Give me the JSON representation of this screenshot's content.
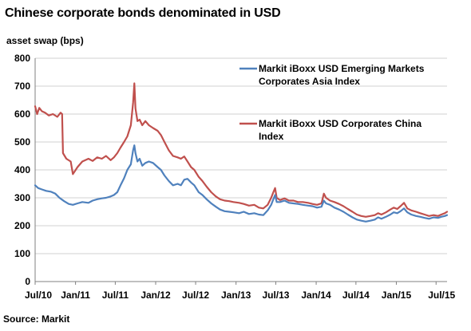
{
  "chart_data": {
    "type": "line",
    "title": "Chinese corporate bonds denominated in USD",
    "ylabel": "asset swap (bps)",
    "source": "Source: Markit",
    "ylim": [
      0,
      800
    ],
    "yticks": [
      0,
      100,
      200,
      300,
      400,
      500,
      600,
      700,
      800
    ],
    "xlim": [
      "2010-07-01",
      "2015-08-20"
    ],
    "xticks": [
      {
        "date": "2010-07-01",
        "label": "Jul/10"
      },
      {
        "date": "2011-01-01",
        "label": "Jan/11"
      },
      {
        "date": "2011-07-01",
        "label": "Jul/11"
      },
      {
        "date": "2012-01-01",
        "label": "Jan/12"
      },
      {
        "date": "2012-07-01",
        "label": "Jul/12"
      },
      {
        "date": "2013-01-01",
        "label": "Jan/13"
      },
      {
        "date": "2013-07-01",
        "label": "Jul/13"
      },
      {
        "date": "2014-01-01",
        "label": "Jan/14"
      },
      {
        "date": "2014-07-01",
        "label": "Jul/14"
      },
      {
        "date": "2015-01-01",
        "label": "Jan/15"
      },
      {
        "date": "2015-07-01",
        "label": "Jul/15"
      }
    ],
    "grid": "horizontal",
    "legend_placement": "top-right",
    "series": [
      {
        "name": "Markit iBoxx USD Emerging Markets Corporates Asia Index",
        "color": "#4f81bd",
        "points": [
          [
            "2010-07-01",
            345
          ],
          [
            "2010-07-15",
            335
          ],
          [
            "2010-08-01",
            330
          ],
          [
            "2010-08-20",
            325
          ],
          [
            "2010-09-10",
            322
          ],
          [
            "2010-10-01",
            315
          ],
          [
            "2010-10-20",
            300
          ],
          [
            "2010-11-10",
            288
          ],
          [
            "2010-12-01",
            278
          ],
          [
            "2010-12-20",
            275
          ],
          [
            "2011-01-10",
            280
          ],
          [
            "2011-02-01",
            285
          ],
          [
            "2011-03-01",
            282
          ],
          [
            "2011-03-20",
            290
          ],
          [
            "2011-04-10",
            295
          ],
          [
            "2011-05-01",
            298
          ],
          [
            "2011-05-20",
            300
          ],
          [
            "2011-06-10",
            305
          ],
          [
            "2011-06-25",
            310
          ],
          [
            "2011-07-10",
            320
          ],
          [
            "2011-07-25",
            345
          ],
          [
            "2011-08-10",
            370
          ],
          [
            "2011-08-25",
            400
          ],
          [
            "2011-09-10",
            420
          ],
          [
            "2011-09-20",
            470
          ],
          [
            "2011-09-26",
            488
          ],
          [
            "2011-10-01",
            460
          ],
          [
            "2011-10-10",
            430
          ],
          [
            "2011-10-20",
            440
          ],
          [
            "2011-11-01",
            415
          ],
          [
            "2011-11-15",
            425
          ],
          [
            "2011-12-01",
            430
          ],
          [
            "2011-12-20",
            425
          ],
          [
            "2012-01-10",
            410
          ],
          [
            "2012-01-25",
            400
          ],
          [
            "2012-02-10",
            380
          ],
          [
            "2012-03-01",
            360
          ],
          [
            "2012-03-20",
            345
          ],
          [
            "2012-04-10",
            350
          ],
          [
            "2012-04-25",
            345
          ],
          [
            "2012-05-10",
            365
          ],
          [
            "2012-05-25",
            368
          ],
          [
            "2012-06-10",
            355
          ],
          [
            "2012-06-25",
            345
          ],
          [
            "2012-07-15",
            320
          ],
          [
            "2012-08-01",
            310
          ],
          [
            "2012-08-20",
            295
          ],
          [
            "2012-09-10",
            280
          ],
          [
            "2012-10-01",
            268
          ],
          [
            "2012-10-20",
            258
          ],
          [
            "2012-11-10",
            252
          ],
          [
            "2012-12-01",
            250
          ],
          [
            "2012-12-20",
            248
          ],
          [
            "2013-01-15",
            245
          ],
          [
            "2013-02-05",
            250
          ],
          [
            "2013-03-01",
            242
          ],
          [
            "2013-03-25",
            245
          ],
          [
            "2013-04-15",
            240
          ],
          [
            "2013-05-05",
            238
          ],
          [
            "2013-05-25",
            255
          ],
          [
            "2013-06-10",
            275
          ],
          [
            "2013-06-20",
            295
          ],
          [
            "2013-06-28",
            310
          ],
          [
            "2013-07-05",
            285
          ],
          [
            "2013-07-20",
            285
          ],
          [
            "2013-08-10",
            290
          ],
          [
            "2013-08-30",
            282
          ],
          [
            "2013-09-20",
            280
          ],
          [
            "2013-10-10",
            278
          ],
          [
            "2013-11-01",
            275
          ],
          [
            "2013-11-25",
            272
          ],
          [
            "2013-12-15",
            270
          ],
          [
            "2014-01-05",
            265
          ],
          [
            "2014-01-25",
            268
          ],
          [
            "2014-02-05",
            290
          ],
          [
            "2014-02-15",
            280
          ],
          [
            "2014-03-05",
            275
          ],
          [
            "2014-03-25",
            265
          ],
          [
            "2014-04-15",
            258
          ],
          [
            "2014-05-05",
            250
          ],
          [
            "2014-05-25",
            240
          ],
          [
            "2014-06-15",
            230
          ],
          [
            "2014-07-05",
            222
          ],
          [
            "2014-07-25",
            218
          ],
          [
            "2014-08-15",
            215
          ],
          [
            "2014-09-05",
            218
          ],
          [
            "2014-09-25",
            222
          ],
          [
            "2014-10-10",
            230
          ],
          [
            "2014-10-25",
            225
          ],
          [
            "2014-11-15",
            232
          ],
          [
            "2014-12-05",
            240
          ],
          [
            "2014-12-20",
            248
          ],
          [
            "2015-01-05",
            245
          ],
          [
            "2015-01-20",
            252
          ],
          [
            "2015-02-05",
            262
          ],
          [
            "2015-02-20",
            248
          ],
          [
            "2015-03-10",
            240
          ],
          [
            "2015-04-01",
            235
          ],
          [
            "2015-04-20",
            232
          ],
          [
            "2015-05-10",
            228
          ],
          [
            "2015-05-30",
            225
          ],
          [
            "2015-06-20",
            230
          ],
          [
            "2015-07-10",
            228
          ],
          [
            "2015-07-25",
            232
          ],
          [
            "2015-08-10",
            235
          ],
          [
            "2015-08-20",
            238
          ]
        ]
      },
      {
        "name": "Markit iBoxx USD Corporates China Index",
        "color": "#c0504d",
        "points": [
          [
            "2010-07-01",
            628
          ],
          [
            "2010-07-10",
            600
          ],
          [
            "2010-07-20",
            622
          ],
          [
            "2010-08-01",
            610
          ],
          [
            "2010-08-15",
            605
          ],
          [
            "2010-09-01",
            595
          ],
          [
            "2010-09-20",
            600
          ],
          [
            "2010-10-10",
            590
          ],
          [
            "2010-10-25",
            605
          ],
          [
            "2010-11-01",
            600
          ],
          [
            "2010-11-05",
            460
          ],
          [
            "2010-11-20",
            440
          ],
          [
            "2010-12-10",
            430
          ],
          [
            "2010-12-20",
            385
          ],
          [
            "2011-01-10",
            410
          ],
          [
            "2011-02-01",
            430
          ],
          [
            "2011-03-01",
            440
          ],
          [
            "2011-03-20",
            432
          ],
          [
            "2011-04-10",
            445
          ],
          [
            "2011-05-01",
            440
          ],
          [
            "2011-05-20",
            450
          ],
          [
            "2011-06-10",
            435
          ],
          [
            "2011-06-25",
            445
          ],
          [
            "2011-07-10",
            460
          ],
          [
            "2011-07-25",
            480
          ],
          [
            "2011-08-10",
            500
          ],
          [
            "2011-08-25",
            520
          ],
          [
            "2011-09-10",
            560
          ],
          [
            "2011-09-20",
            640
          ],
          [
            "2011-09-26",
            710
          ],
          [
            "2011-10-01",
            620
          ],
          [
            "2011-10-10",
            575
          ],
          [
            "2011-10-20",
            580
          ],
          [
            "2011-11-01",
            560
          ],
          [
            "2011-11-15",
            575
          ],
          [
            "2011-12-01",
            560
          ],
          [
            "2011-12-20",
            550
          ],
          [
            "2012-01-10",
            540
          ],
          [
            "2012-01-25",
            525
          ],
          [
            "2012-02-10",
            500
          ],
          [
            "2012-03-01",
            470
          ],
          [
            "2012-03-20",
            450
          ],
          [
            "2012-04-10",
            445
          ],
          [
            "2012-04-25",
            440
          ],
          [
            "2012-05-10",
            448
          ],
          [
            "2012-05-25",
            430
          ],
          [
            "2012-06-10",
            410
          ],
          [
            "2012-06-25",
            400
          ],
          [
            "2012-07-15",
            375
          ],
          [
            "2012-08-01",
            360
          ],
          [
            "2012-08-20",
            340
          ],
          [
            "2012-09-10",
            320
          ],
          [
            "2012-10-01",
            305
          ],
          [
            "2012-10-20",
            295
          ],
          [
            "2012-11-10",
            290
          ],
          [
            "2012-12-01",
            288
          ],
          [
            "2012-12-20",
            285
          ],
          [
            "2013-01-15",
            282
          ],
          [
            "2013-02-05",
            278
          ],
          [
            "2013-03-01",
            272
          ],
          [
            "2013-03-25",
            275
          ],
          [
            "2013-04-15",
            265
          ],
          [
            "2013-05-05",
            262
          ],
          [
            "2013-05-25",
            275
          ],
          [
            "2013-06-10",
            300
          ],
          [
            "2013-06-20",
            320
          ],
          [
            "2013-06-28",
            335
          ],
          [
            "2013-07-05",
            300
          ],
          [
            "2013-07-20",
            292
          ],
          [
            "2013-08-10",
            298
          ],
          [
            "2013-08-30",
            290
          ],
          [
            "2013-09-20",
            290
          ],
          [
            "2013-10-10",
            285
          ],
          [
            "2013-11-01",
            285
          ],
          [
            "2013-11-25",
            282
          ],
          [
            "2013-12-15",
            278
          ],
          [
            "2014-01-05",
            275
          ],
          [
            "2014-01-25",
            280
          ],
          [
            "2014-02-05",
            315
          ],
          [
            "2014-02-15",
            300
          ],
          [
            "2014-03-05",
            290
          ],
          [
            "2014-03-25",
            285
          ],
          [
            "2014-04-15",
            278
          ],
          [
            "2014-05-05",
            270
          ],
          [
            "2014-05-25",
            260
          ],
          [
            "2014-06-15",
            250
          ],
          [
            "2014-07-05",
            240
          ],
          [
            "2014-07-25",
            235
          ],
          [
            "2014-08-15",
            232
          ],
          [
            "2014-09-05",
            235
          ],
          [
            "2014-09-25",
            238
          ],
          [
            "2014-10-10",
            245
          ],
          [
            "2014-10-25",
            240
          ],
          [
            "2014-11-15",
            248
          ],
          [
            "2014-12-05",
            258
          ],
          [
            "2014-12-20",
            265
          ],
          [
            "2015-01-05",
            260
          ],
          [
            "2015-01-20",
            270
          ],
          [
            "2015-02-05",
            282
          ],
          [
            "2015-02-20",
            262
          ],
          [
            "2015-03-10",
            255
          ],
          [
            "2015-04-01",
            250
          ],
          [
            "2015-04-20",
            245
          ],
          [
            "2015-05-10",
            240
          ],
          [
            "2015-05-30",
            235
          ],
          [
            "2015-06-20",
            238
          ],
          [
            "2015-07-10",
            235
          ],
          [
            "2015-07-25",
            240
          ],
          [
            "2015-08-10",
            245
          ],
          [
            "2015-08-20",
            250
          ]
        ]
      }
    ]
  }
}
